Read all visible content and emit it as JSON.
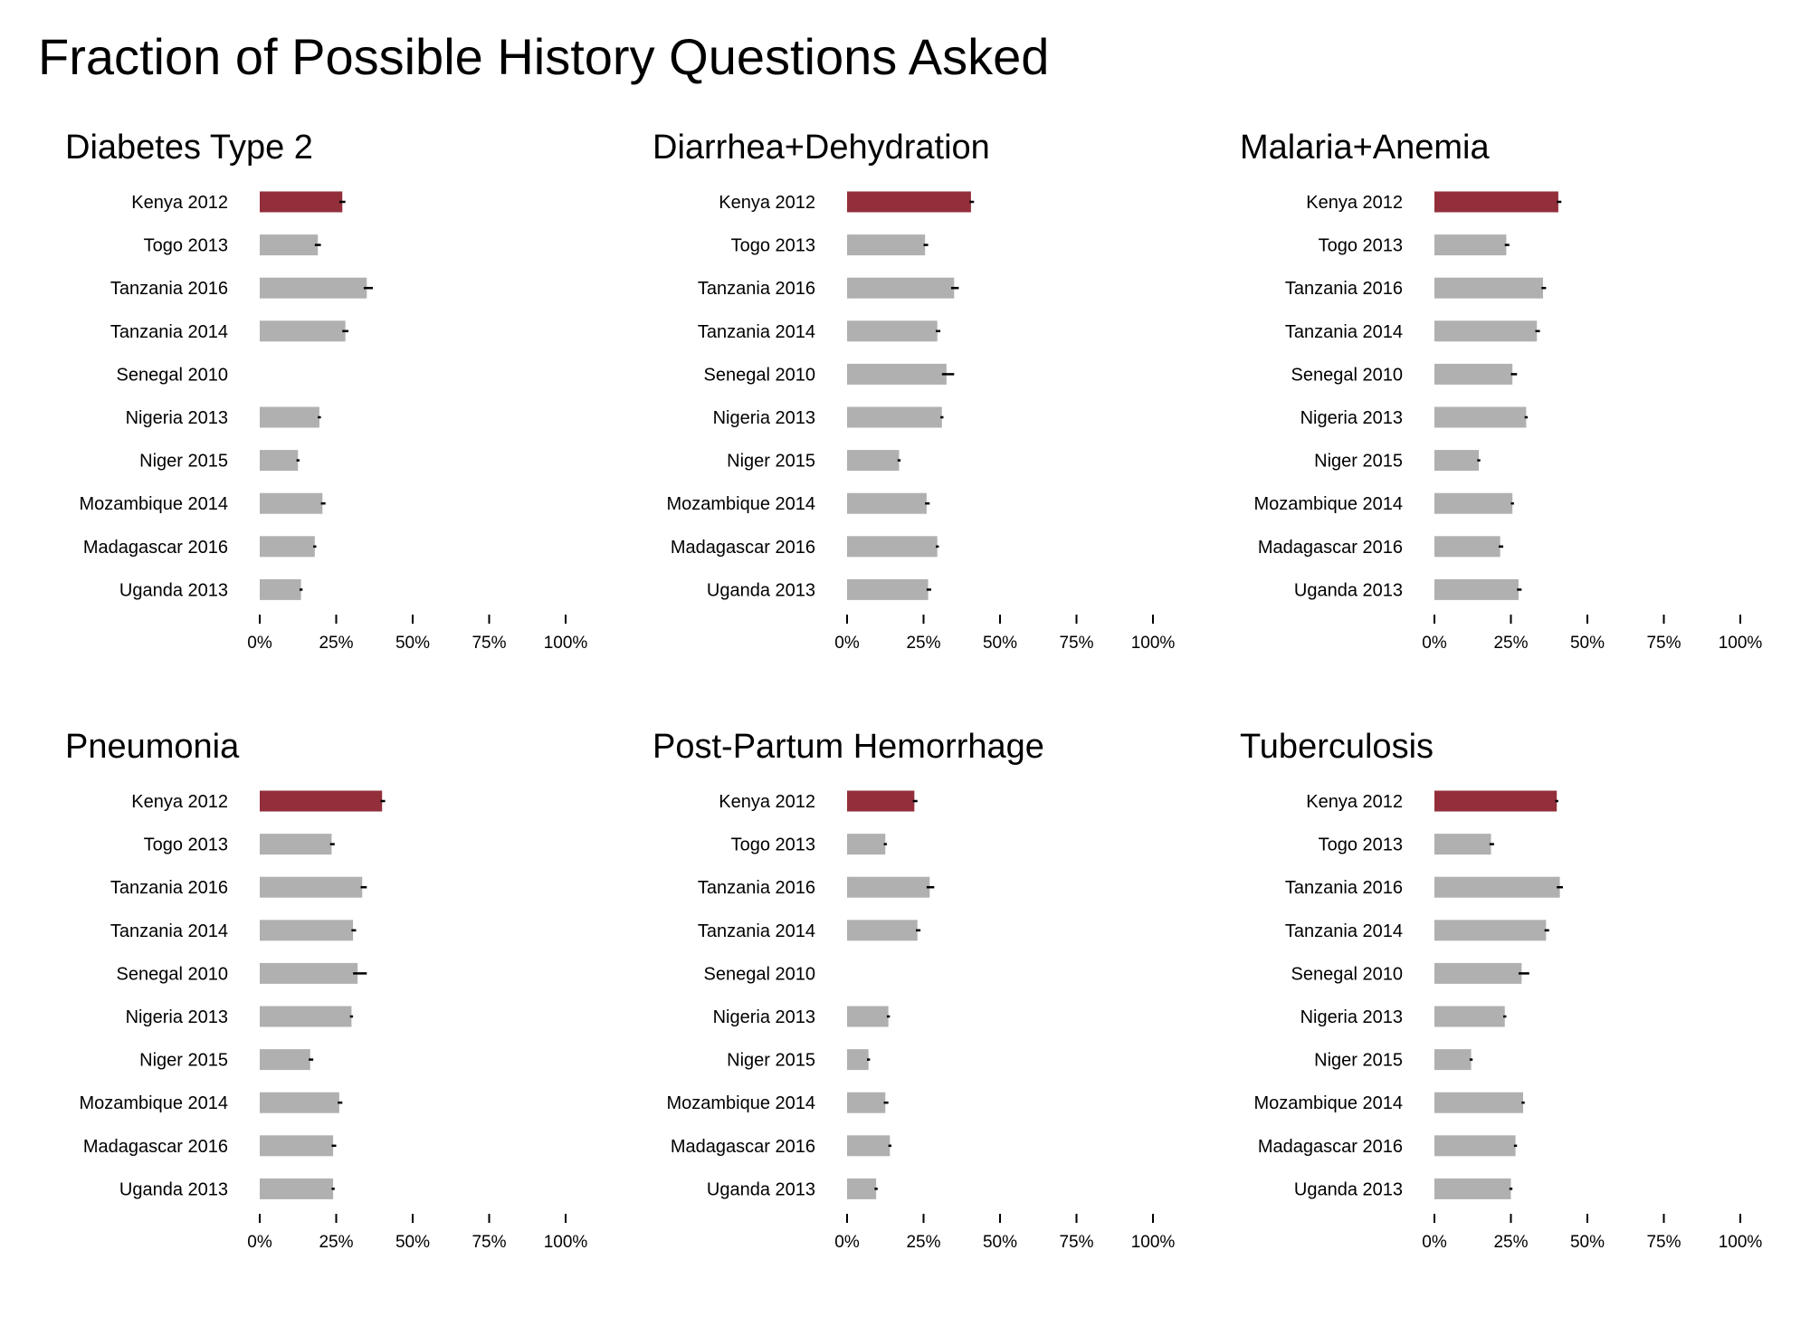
{
  "title": "Fraction of Possible History Questions Asked",
  "colors": {
    "highlight": "#922f3a",
    "bar": "#b0b0b0",
    "error": "#000000"
  },
  "chart_data": [
    {
      "type": "bar",
      "title": "Diabetes Type 2",
      "orientation": "horizontal",
      "categories": [
        "Kenya 2012",
        "Togo 2013",
        "Tanzania 2016",
        "Tanzania 2014",
        "Senegal 2010",
        "Nigeria 2013",
        "Niger 2015",
        "Mozambique 2014",
        "Madagascar 2016",
        "Uganda 2013"
      ],
      "values": [
        27,
        19,
        35,
        28,
        null,
        19.5,
        12.5,
        20.5,
        18,
        13.5
      ],
      "error_low": [
        26,
        18,
        34,
        27,
        null,
        19,
        12,
        20,
        17.5,
        13
      ],
      "error_high": [
        28,
        20,
        37,
        29,
        null,
        20,
        13,
        21.5,
        18.5,
        14
      ],
      "xlim": [
        0,
        100
      ],
      "x_ticks": [
        "0%",
        "25%",
        "50%",
        "75%",
        "100%"
      ],
      "highlight": "Kenya 2012"
    },
    {
      "type": "bar",
      "title": "Diarrhea+Dehydration",
      "orientation": "horizontal",
      "categories": [
        "Kenya 2012",
        "Togo 2013",
        "Tanzania 2016",
        "Tanzania 2014",
        "Senegal 2010",
        "Nigeria 2013",
        "Niger 2015",
        "Mozambique 2014",
        "Madagascar 2016",
        "Uganda 2013"
      ],
      "values": [
        40.5,
        25.5,
        35,
        29.5,
        32.5,
        31,
        17,
        26,
        29.5,
        26.5
      ],
      "error_low": [
        40,
        25,
        34,
        29,
        31,
        30.5,
        16.5,
        25.5,
        29,
        26
      ],
      "error_high": [
        41.5,
        26.5,
        36.5,
        30.5,
        35,
        31.5,
        17.5,
        27,
        30,
        27.5
      ],
      "xlim": [
        0,
        100
      ],
      "x_ticks": [
        "0%",
        "25%",
        "50%",
        "75%",
        "100%"
      ],
      "highlight": "Kenya 2012"
    },
    {
      "type": "bar",
      "title": "Malaria+Anemia",
      "orientation": "horizontal",
      "categories": [
        "Kenya 2012",
        "Togo 2013",
        "Tanzania 2016",
        "Tanzania 2014",
        "Senegal 2010",
        "Nigeria 2013",
        "Niger 2015",
        "Mozambique 2014",
        "Madagascar 2016",
        "Uganda 2013"
      ],
      "values": [
        40.5,
        23.5,
        35.5,
        33.5,
        25.5,
        30,
        14.5,
        25.5,
        21.5,
        27.5
      ],
      "error_low": [
        40,
        23,
        35,
        33,
        25,
        29.5,
        14,
        25,
        21,
        27
      ],
      "error_high": [
        41.5,
        24.5,
        36.5,
        34.5,
        27,
        30.5,
        15,
        26,
        22.5,
        28.5
      ],
      "xlim": [
        0,
        100
      ],
      "x_ticks": [
        "0%",
        "25%",
        "50%",
        "75%",
        "100%"
      ],
      "highlight": "Kenya 2012"
    },
    {
      "type": "bar",
      "title": "Pneumonia",
      "orientation": "horizontal",
      "categories": [
        "Kenya 2012",
        "Togo 2013",
        "Tanzania 2016",
        "Tanzania 2014",
        "Senegal 2010",
        "Nigeria 2013",
        "Niger 2015",
        "Mozambique 2014",
        "Madagascar 2016",
        "Uganda 2013"
      ],
      "values": [
        40,
        23.5,
        33.5,
        30.5,
        32,
        30,
        16.5,
        26,
        24,
        24
      ],
      "error_low": [
        39.5,
        23,
        33,
        30,
        30.5,
        29.5,
        16,
        25.5,
        23.5,
        23.5
      ],
      "error_high": [
        41,
        24.5,
        35,
        31.5,
        35,
        30.5,
        17.5,
        27,
        25,
        24.5
      ],
      "xlim": [
        0,
        100
      ],
      "x_ticks": [
        "0%",
        "25%",
        "50%",
        "75%",
        "100%"
      ],
      "highlight": "Kenya 2012"
    },
    {
      "type": "bar",
      "title": "Post-Partum Hemorrhage",
      "orientation": "horizontal",
      "categories": [
        "Kenya 2012",
        "Togo 2013",
        "Tanzania 2016",
        "Tanzania 2014",
        "Senegal 2010",
        "Nigeria 2013",
        "Niger 2015",
        "Mozambique 2014",
        "Madagascar 2016",
        "Uganda 2013"
      ],
      "values": [
        22,
        12.5,
        27,
        23,
        null,
        13.5,
        7,
        12.5,
        14,
        9.5
      ],
      "error_low": [
        21.5,
        12,
        26,
        22.5,
        null,
        13,
        6.5,
        12,
        13.5,
        9
      ],
      "error_high": [
        23,
        13,
        28.5,
        24,
        null,
        14,
        7.5,
        13.5,
        14.5,
        10
      ],
      "xlim": [
        0,
        100
      ],
      "x_ticks": [
        "0%",
        "25%",
        "50%",
        "75%",
        "100%"
      ],
      "highlight": "Kenya 2012"
    },
    {
      "type": "bar",
      "title": "Tuberculosis",
      "orientation": "horizontal",
      "categories": [
        "Kenya 2012",
        "Togo 2013",
        "Tanzania 2016",
        "Tanzania 2014",
        "Senegal 2010",
        "Nigeria 2013",
        "Niger 2015",
        "Mozambique 2014",
        "Madagascar 2016",
        "Uganda 2013"
      ],
      "values": [
        40,
        18.5,
        41,
        36.5,
        28.5,
        23,
        12,
        29,
        26.5,
        25
      ],
      "error_low": [
        39.5,
        18,
        40,
        36,
        27.5,
        22.5,
        11.5,
        28.5,
        26,
        24.5
      ],
      "error_high": [
        40.5,
        19.5,
        42,
        37.5,
        31,
        23.5,
        12.5,
        29.5,
        27,
        25.5
      ],
      "xlim": [
        0,
        100
      ],
      "x_ticks": [
        "0%",
        "25%",
        "50%",
        "75%",
        "100%"
      ],
      "highlight": "Kenya 2012"
    }
  ]
}
